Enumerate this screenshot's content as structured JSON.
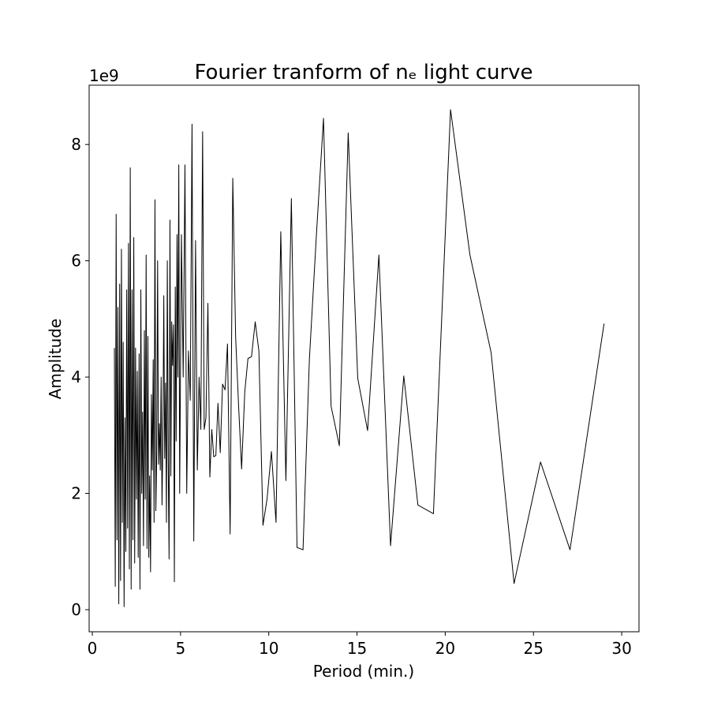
{
  "chart_data": {
    "type": "line",
    "title": "Fourier tranform of nₑ light curve",
    "xlabel": "Period (min.)",
    "ylabel": "Amplitude",
    "y_offset_label": "1e9",
    "xlim": [
      -0.18,
      30.98
    ],
    "ylim": [
      -0.38,
      9.02
    ],
    "xticks": [
      0,
      5,
      10,
      15,
      20,
      25,
      30
    ],
    "yticks": [
      0,
      2,
      4,
      6,
      8
    ],
    "grid": false,
    "series": [
      {
        "name": "Amplitude",
        "color": "#000000",
        "x": [
          1.25,
          1.3,
          1.35,
          1.4,
          1.45,
          1.5,
          1.55,
          1.6,
          1.65,
          1.7,
          1.75,
          1.8,
          1.85,
          1.9,
          1.95,
          2.0,
          2.05,
          2.1,
          2.15,
          2.2,
          2.25,
          2.3,
          2.35,
          2.4,
          2.45,
          2.5,
          2.55,
          2.6,
          2.65,
          2.7,
          2.75,
          2.8,
          2.85,
          2.9,
          2.95,
          3.0,
          3.05,
          3.1,
          3.15,
          3.2,
          3.25,
          3.3,
          3.35,
          3.4,
          3.45,
          3.5,
          3.55,
          3.6,
          3.65,
          3.7,
          3.75,
          3.8,
          3.85,
          3.9,
          3.95,
          4.0,
          4.05,
          4.1,
          4.15,
          4.2,
          4.25,
          4.3,
          4.35,
          4.4,
          4.45,
          4.5,
          4.55,
          4.6,
          4.65,
          4.7,
          4.75,
          4.8,
          4.85,
          4.9,
          4.95,
          5.05,
          5.15,
          5.25,
          5.35,
          5.45,
          5.55,
          5.65,
          5.75,
          5.85,
          5.95,
          6.05,
          6.15,
          6.25,
          6.34,
          6.44,
          6.55,
          6.66,
          6.77,
          6.88,
          7.0,
          7.12,
          7.25,
          7.38,
          7.52,
          7.66,
          7.81,
          7.96,
          8.12,
          8.29,
          8.46,
          8.64,
          8.82,
          9.02,
          9.23,
          9.44,
          9.67,
          9.9,
          10.15,
          10.41,
          10.68,
          10.97,
          11.28,
          11.6,
          11.94,
          12.3,
          12.69,
          13.1,
          13.53,
          14.0,
          14.5,
          15.04,
          15.6,
          16.24,
          16.9,
          17.65,
          18.45,
          19.33,
          20.3,
          21.4,
          22.6,
          23.9,
          25.4,
          27.07,
          29.0
        ],
        "values": [
          4.5,
          0.4,
          6.8,
          1.2,
          5.2,
          0.1,
          5.6,
          0.5,
          6.2,
          1.5,
          4.6,
          0.05,
          3.3,
          1.0,
          5.5,
          1.4,
          6.3,
          0.7,
          7.6,
          0.35,
          5.5,
          1.2,
          6.4,
          0.8,
          4.5,
          1.9,
          4.1,
          0.9,
          4.4,
          0.35,
          5.5,
          2.0,
          3.4,
          1.1,
          4.8,
          1.9,
          6.1,
          1.05,
          4.7,
          0.9,
          2.3,
          0.65,
          3.7,
          2.4,
          4.3,
          1.5,
          7.05,
          1.7,
          2.7,
          6.0,
          2.5,
          3.2,
          2.4,
          4.0,
          1.8,
          3.0,
          5.4,
          2.6,
          3.9,
          1.5,
          6.0,
          2.6,
          0.87,
          6.7,
          2.3,
          4.95,
          4.2,
          4.9,
          0.48,
          5.55,
          2.9,
          6.45,
          4.0,
          7.65,
          2.0,
          6.45,
          4.0,
          7.65,
          2.0,
          4.45,
          3.6,
          8.35,
          1.18,
          6.35,
          2.4,
          4.0,
          3.1,
          8.22,
          3.1,
          3.3,
          5.27,
          2.28,
          3.1,
          2.63,
          2.65,
          3.55,
          2.7,
          3.88,
          3.78,
          4.57,
          1.3,
          7.42,
          4.7,
          3.5,
          2.42,
          3.75,
          4.32,
          4.35,
          4.95,
          4.45,
          1.45,
          1.9,
          2.72,
          1.5,
          6.5,
          2.22,
          7.07,
          1.07,
          1.03,
          4.3,
          6.4,
          8.45,
          3.5,
          2.82,
          8.2,
          3.98,
          3.08,
          6.1,
          1.1,
          4.02,
          1.8,
          1.65,
          8.6,
          6.1,
          4.42,
          0.45,
          2.54,
          1.03,
          4.92
        ]
      }
    ]
  }
}
